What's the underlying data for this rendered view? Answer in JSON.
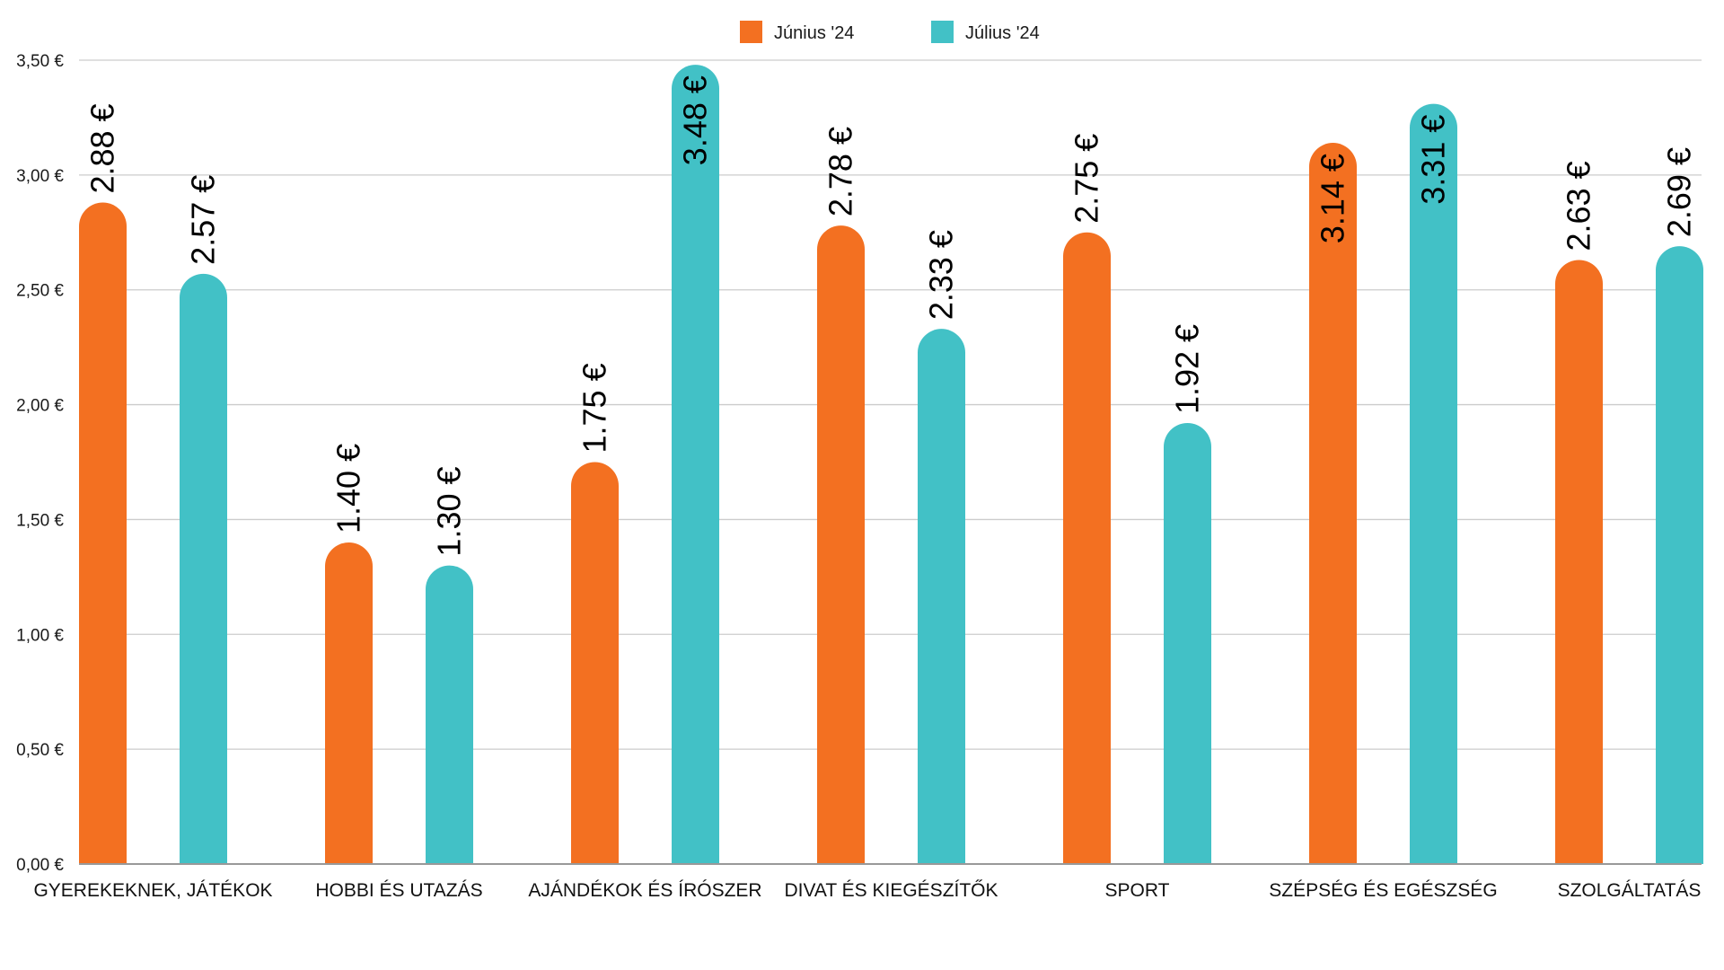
{
  "chart_data": {
    "type": "bar",
    "title": "",
    "xlabel": "",
    "ylabel": "",
    "ylim": [
      0,
      3.5
    ],
    "y_ticks": [
      0,
      0.5,
      1.0,
      1.5,
      2.0,
      2.5,
      3.0,
      3.5
    ],
    "y_tick_labels": [
      "0,00 €",
      "0,50 €",
      "1,00 €",
      "1,50 €",
      "2,00 €",
      "2,50 €",
      "3,00 €",
      "3,50 €"
    ],
    "grid": true,
    "legend_position": "top-center",
    "categories": [
      "GYEREKEKNEK, JÁTÉKOK",
      "HOBBI ÉS UTAZÁS",
      "AJÁNDÉKOK ÉS ÍRÓSZER",
      "DIVAT ÉS KIEGÉSZÍTŐK",
      "SPORT",
      "SZÉPSÉG ÉS EGÉSZSÉG",
      "SZOLGÁLTATÁS"
    ],
    "series": [
      {
        "name": "Június '24",
        "color": "#f37021",
        "values": [
          2.88,
          1.4,
          1.75,
          2.78,
          2.75,
          3.14,
          2.63
        ],
        "data_labels": [
          "2.88 €",
          "1.40 €",
          "1.75 €",
          "2.78 €",
          "2.75 €",
          "3.14 €",
          "2.63 €"
        ]
      },
      {
        "name": "Július '24",
        "color": "#42c1c6",
        "values": [
          2.57,
          1.3,
          3.48,
          2.33,
          1.92,
          3.31,
          2.69
        ],
        "data_labels": [
          "2.57 €",
          "1.30 €",
          "3.48 €",
          "2.33 €",
          "1.92 €",
          "3.31 €",
          "2.69 €"
        ]
      }
    ]
  }
}
